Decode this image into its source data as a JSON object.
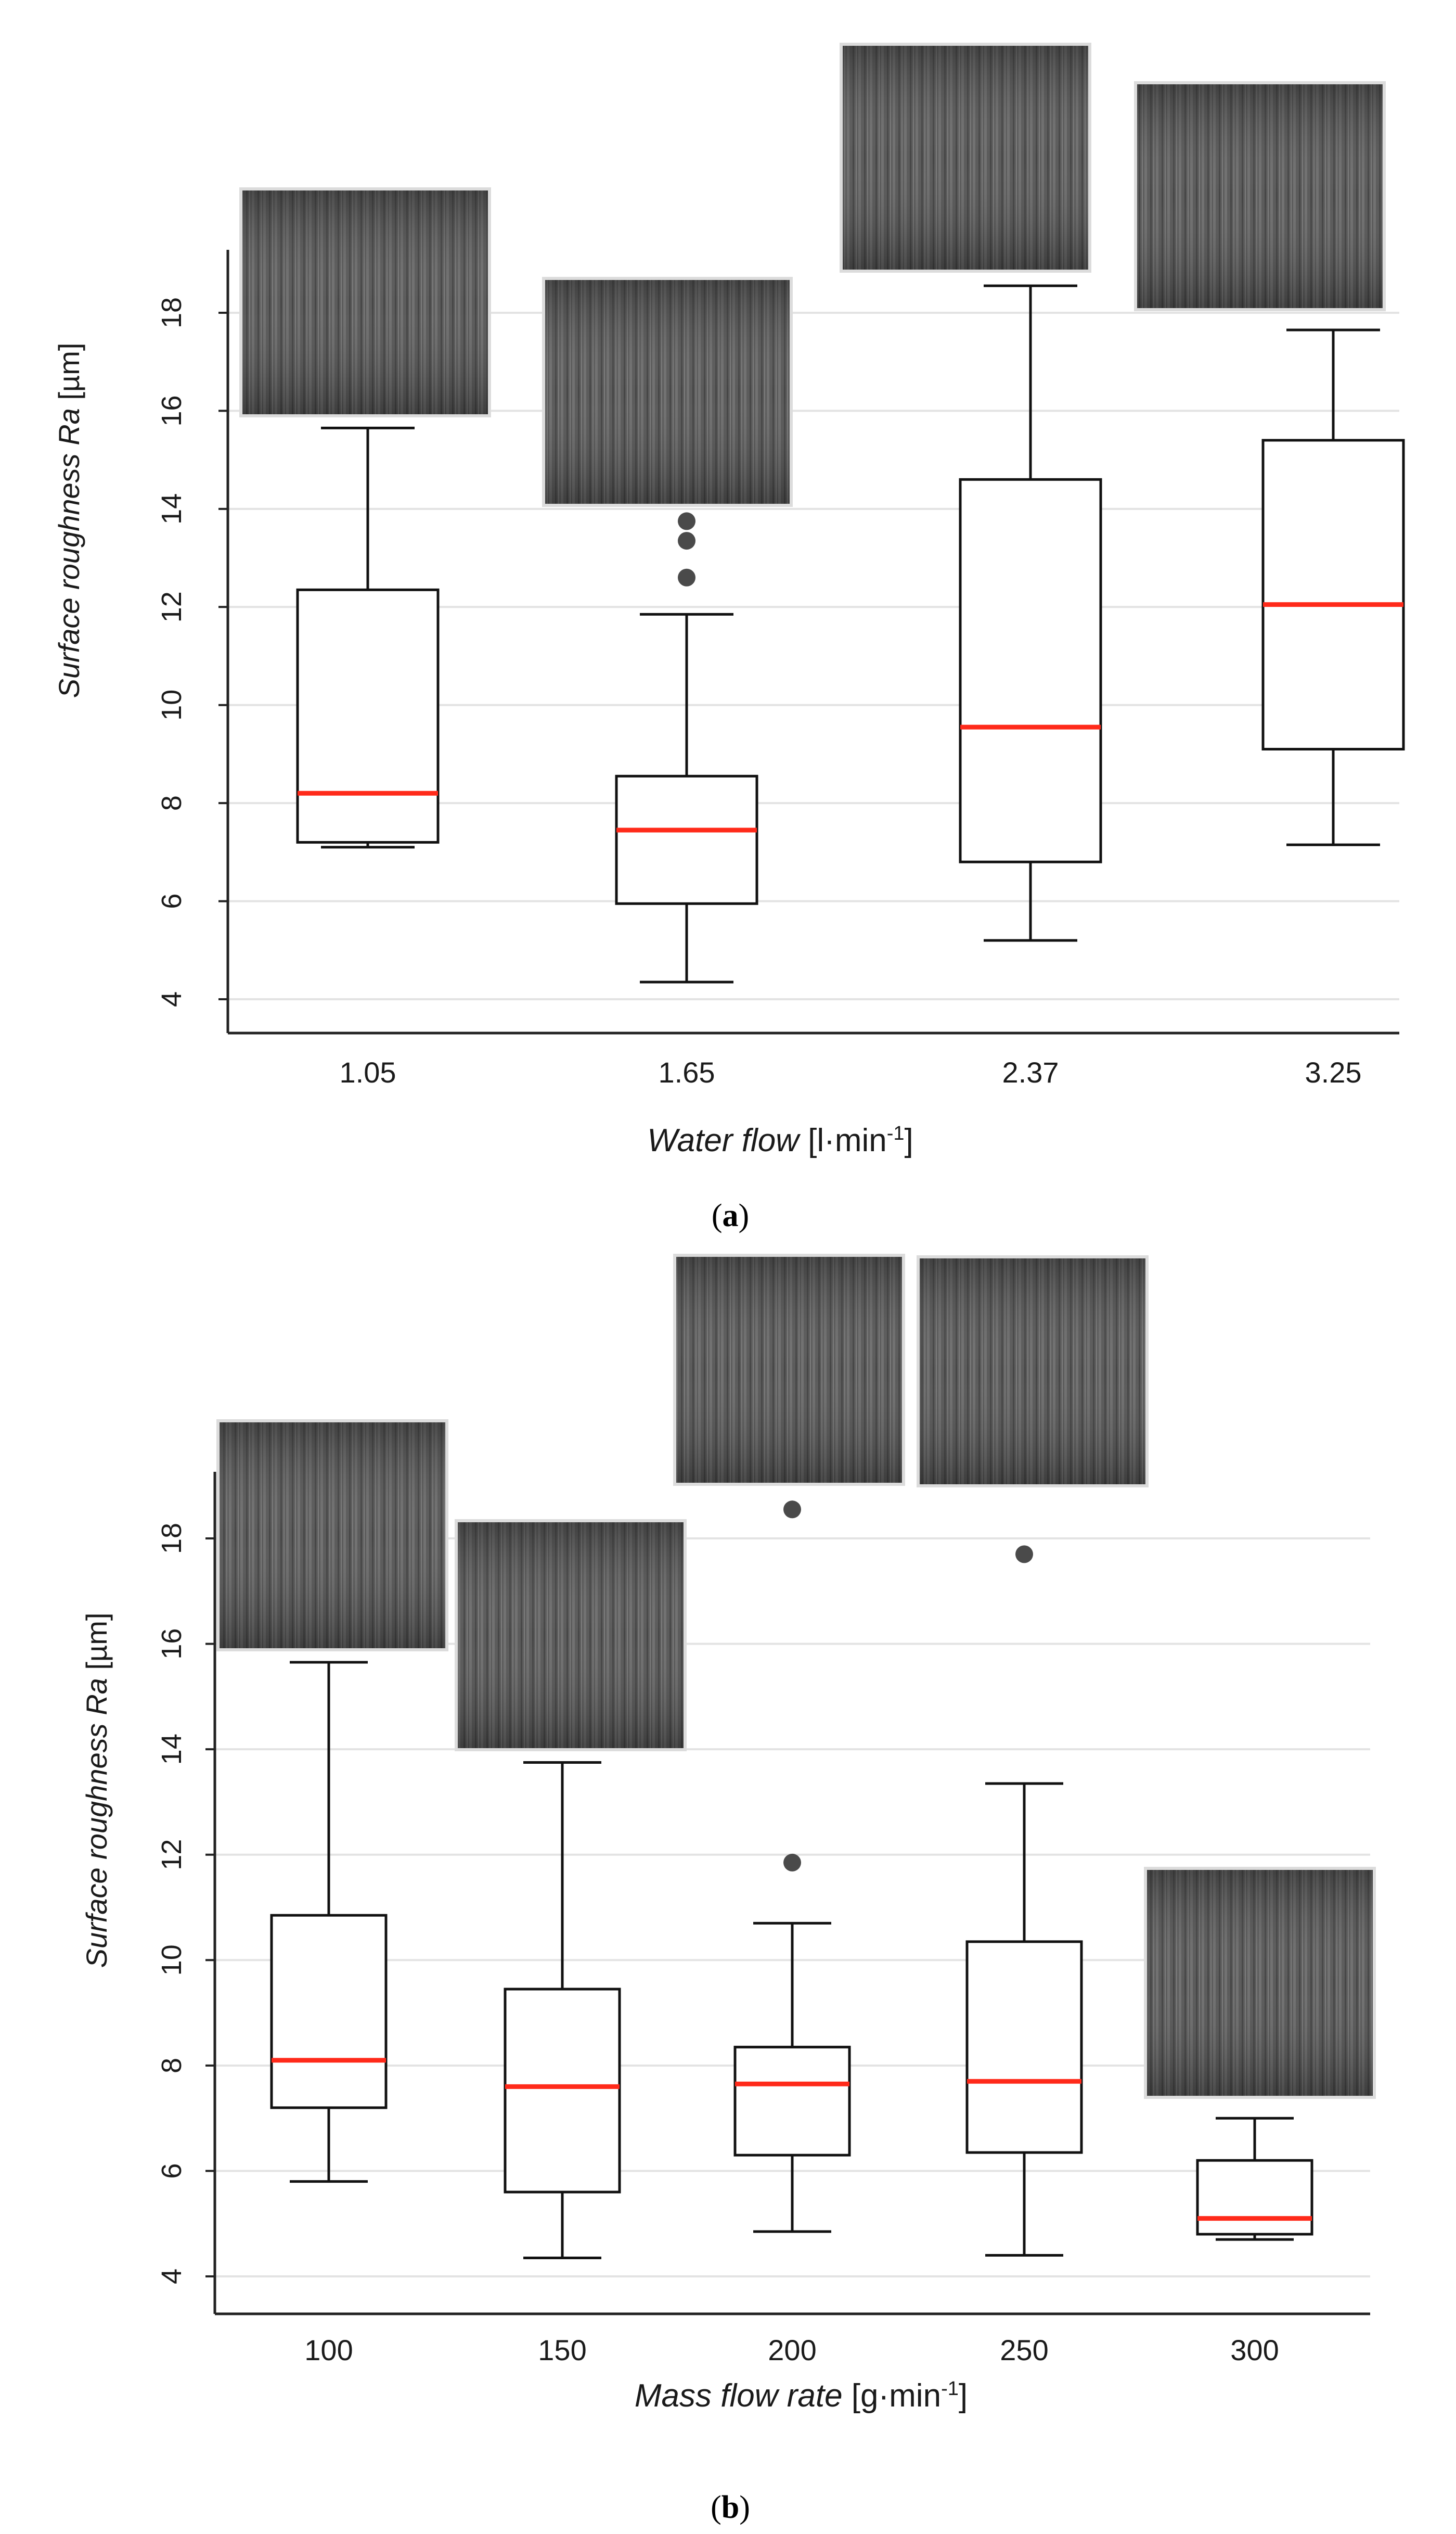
{
  "chart_data": [
    {
      "type": "box",
      "panel": "a",
      "panel_label_open": "(",
      "panel_label_letter": "a",
      "panel_label_close": ")",
      "ylabel_italic": "Surface roughness Ra",
      "ylabel_unit": " [µm]",
      "xlabel_italic": "Water flow",
      "xlabel_unit": " [l·min",
      "xlabel_sup": "-1",
      "xlabel_end": "]",
      "ylim": [
        3.4,
        19.4
      ],
      "yticks": [
        4,
        6,
        8,
        10,
        12,
        14,
        16,
        18
      ],
      "grid": true,
      "categories": [
        "1.05",
        "1.65",
        "2.37",
        "3.25"
      ],
      "boxes": [
        {
          "whisker_low": 7.1,
          "q1": 7.2,
          "median": 8.2,
          "q3": 12.35,
          "whisker_high": 15.65,
          "outliers": []
        },
        {
          "whisker_low": 4.35,
          "q1": 5.95,
          "median": 7.45,
          "q3": 8.55,
          "whisker_high": 11.85,
          "outliers": [
            12.6,
            13.35,
            13.75
          ]
        },
        {
          "whisker_low": 5.2,
          "q1": 6.8,
          "median": 9.55,
          "q3": 14.6,
          "whisker_high": 18.55,
          "outliers": []
        },
        {
          "whisker_low": 7.15,
          "q1": 9.1,
          "median": 12.05,
          "q3": 15.4,
          "whisker_high": 17.65,
          "outliers": []
        }
      ],
      "colors": {
        "median": "#ff2a1a",
        "box": "#111111",
        "outlier": "#4a4a4a",
        "grid": "#e3e3e3"
      }
    },
    {
      "type": "box",
      "panel": "b",
      "panel_label_open": "(",
      "panel_label_letter": "b",
      "panel_label_close": ")",
      "ylabel_italic": "Surface roughness Ra",
      "ylabel_unit": " [µm]",
      "xlabel_italic": "Mass flow rate",
      "xlabel_unit": " [g·min",
      "xlabel_sup": "-1",
      "xlabel_end": "]",
      "ylim": [
        3.4,
        19.4
      ],
      "yticks": [
        4,
        6,
        8,
        10,
        12,
        14,
        16,
        18
      ],
      "grid": true,
      "categories": [
        "100",
        "150",
        "200",
        "250",
        "300"
      ],
      "boxes": [
        {
          "whisker_low": 5.8,
          "q1": 7.2,
          "median": 8.1,
          "q3": 10.85,
          "whisker_high": 15.65,
          "outliers": []
        },
        {
          "whisker_low": 4.35,
          "q1": 5.6,
          "median": 7.6,
          "q3": 9.45,
          "whisker_high": 13.75,
          "outliers": []
        },
        {
          "whisker_low": 4.85,
          "q1": 6.3,
          "median": 7.65,
          "q3": 8.35,
          "whisker_high": 10.7,
          "outliers": [
            11.85,
            18.55
          ]
        },
        {
          "whisker_low": 4.4,
          "q1": 6.35,
          "median": 7.7,
          "q3": 10.35,
          "whisker_high": 13.35,
          "outliers": [
            17.7
          ]
        },
        {
          "whisker_low": 4.7,
          "q1": 4.8,
          "median": 5.1,
          "q3": 6.2,
          "whisker_high": 7.0,
          "outliers": []
        }
      ],
      "colors": {
        "median": "#ff2a1a",
        "box": "#111111",
        "outlier": "#4a4a4a",
        "grid": "#e3e3e3"
      }
    }
  ]
}
